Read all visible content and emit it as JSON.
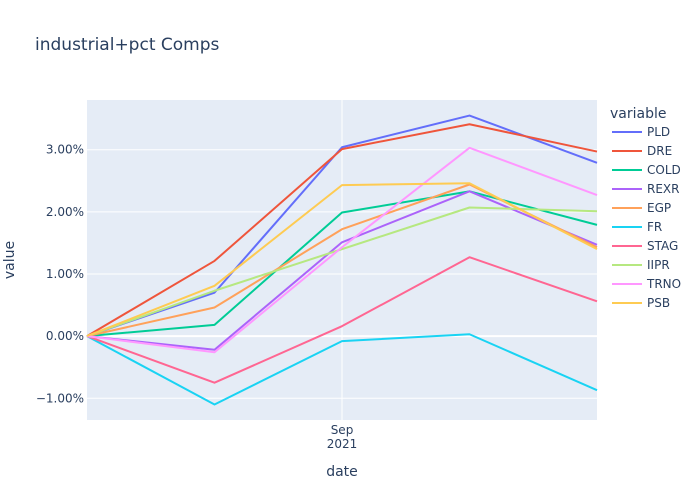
{
  "chart_data": {
    "type": "line",
    "title": "industrial+pct Comps",
    "xlabel": "date",
    "ylabel": "value",
    "legend_title": "variable",
    "legend_position": "right",
    "x": [
      0,
      1,
      2,
      3,
      4
    ],
    "xlim": [
      0,
      4
    ],
    "ylim": [
      -1.35,
      3.8
    ],
    "yticks": [
      -1,
      0,
      1,
      2,
      3
    ],
    "ytick_labels": [
      "−1.00%",
      "0.00%",
      "1.00%",
      "2.00%",
      "3.00%"
    ],
    "xticks": [
      2
    ],
    "xtick_labels": [
      "Sep",
      "2021"
    ],
    "grid": true,
    "series": [
      {
        "name": "PLD",
        "color": "#636efa",
        "values": [
          0,
          0.7,
          3.04,
          3.55,
          2.79
        ]
      },
      {
        "name": "DRE",
        "color": "#EF553B",
        "values": [
          0,
          1.21,
          3.01,
          3.41,
          2.97
        ]
      },
      {
        "name": "COLD",
        "color": "#00cc96",
        "values": [
          0,
          0.18,
          1.99,
          2.33,
          1.79
        ]
      },
      {
        "name": "REXR",
        "color": "#ab63fa",
        "values": [
          0,
          -0.22,
          1.51,
          2.33,
          1.47
        ]
      },
      {
        "name": "EGP",
        "color": "#FFA15A",
        "values": [
          0,
          0.46,
          1.72,
          2.44,
          1.43
        ]
      },
      {
        "name": "FR",
        "color": "#19d3f3",
        "values": [
          0,
          -1.1,
          -0.08,
          0.03,
          -0.87
        ]
      },
      {
        "name": "STAG",
        "color": "#FF6692",
        "values": [
          0,
          -0.75,
          0.16,
          1.27,
          0.56
        ]
      },
      {
        "name": "IIPR",
        "color": "#B6E880",
        "values": [
          0,
          0.73,
          1.4,
          2.07,
          2.01
        ]
      },
      {
        "name": "TRNO",
        "color": "#FF97FF",
        "values": [
          0,
          -0.26,
          1.43,
          3.03,
          2.27
        ]
      },
      {
        "name": "PSB",
        "color": "#FECB52",
        "values": [
          0,
          0.81,
          2.43,
          2.46,
          1.4
        ]
      }
    ]
  }
}
